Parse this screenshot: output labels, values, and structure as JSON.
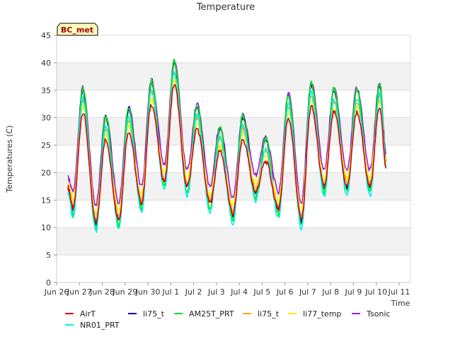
{
  "chart_data": {
    "type": "line",
    "title": "Temperature",
    "xlabel": "Time",
    "ylabel": "Temperatures (C)",
    "badge": "BC_met",
    "ylim": [
      0,
      45
    ],
    "xlim": [
      0,
      15.5
    ],
    "yticks": [
      0,
      5,
      10,
      15,
      20,
      25,
      30,
      35,
      40,
      45
    ],
    "xticks": [
      {
        "x": 0,
        "label": "Jun 26"
      },
      {
        "x": 1,
        "label": "Jun 27"
      },
      {
        "x": 2,
        "label": "Jun 28"
      },
      {
        "x": 3,
        "label": "Jun 29"
      },
      {
        "x": 4,
        "label": "Jun 30"
      },
      {
        "x": 5,
        "label": "Jul 1"
      },
      {
        "x": 6,
        "label": "Jul 2"
      },
      {
        "x": 7,
        "label": "Jul 3"
      },
      {
        "x": 8,
        "label": "Jul 4"
      },
      {
        "x": 9,
        "label": "Jul 5"
      },
      {
        "x": 10,
        "label": "Jul 6"
      },
      {
        "x": 11,
        "label": "Jul 7"
      },
      {
        "x": 12,
        "label": "Jul 8"
      },
      {
        "x": 13,
        "label": "Jul 9"
      },
      {
        "x": 14,
        "label": "Jul 10"
      },
      {
        "x": 15,
        "label": "Jul 11"
      }
    ],
    "grid": true,
    "legend_position": "bottom",
    "x_start": 0.5,
    "day_min": [
      13,
      10.5,
      11,
      14,
      18,
      17,
      14,
      12,
      16,
      13,
      11,
      17,
      17,
      17,
      18
    ],
    "day_max": [
      35,
      30,
      31.5,
      36.5,
      40,
      32,
      28,
      30,
      26,
      34,
      36,
      35,
      35,
      36
    ],
    "end": {
      "x": 14.43,
      "y": 22
    },
    "series": [
      {
        "name": "AirT",
        "color": "#dd0000",
        "maxOffset": -4,
        "minOffset": 0.5
      },
      {
        "name": "NR01_PRT",
        "color": "#00eeee",
        "maxOffset": -1.5,
        "minOffset": -1.2
      },
      {
        "name": "li75_t",
        "color": "#0000bb",
        "maxOffset": 0,
        "minOffset": 0.3
      },
      {
        "name": "AM25T_PRT",
        "color": "#00ee00",
        "maxOffset": 0.3,
        "minOffset": -0.5
      },
      {
        "name": "li75_t",
        "color": "#ffa500",
        "maxOffset": -2,
        "minOffset": 1
      },
      {
        "name": "li77_temp",
        "color": "#ffee00",
        "maxOffset": -3,
        "minOffset": 2
      },
      {
        "name": "Tsonic",
        "color": "#9a1ee0",
        "maxOffset": 0.5,
        "minOffset": 3.5
      }
    ]
  }
}
